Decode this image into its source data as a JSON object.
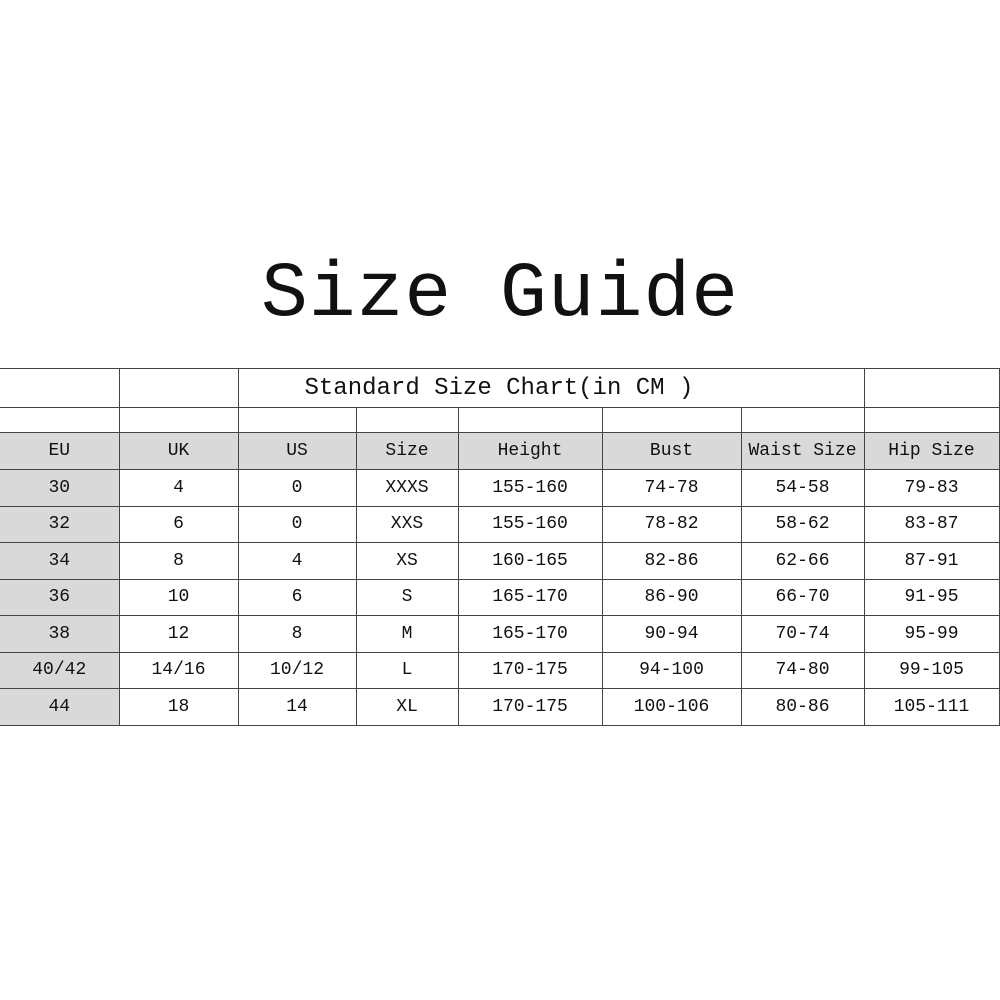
{
  "title": "Size Guide",
  "table": {
    "caption": "Standard Size Chart(in CM )",
    "headers": [
      "EU",
      "UK",
      "US",
      "Size",
      "Height",
      "Bust",
      "Waist Size",
      "Hip Size"
    ],
    "rows": [
      [
        "30",
        "4",
        "0",
        "XXXS",
        "155-160",
        "74-78",
        "54-58",
        "79-83"
      ],
      [
        "32",
        "6",
        "0",
        "XXS",
        "155-160",
        "78-82",
        "58-62",
        "83-87"
      ],
      [
        "34",
        "8",
        "4",
        "XS",
        "160-165",
        "82-86",
        "62-66",
        "87-91"
      ],
      [
        "36",
        "10",
        "6",
        "S",
        "165-170",
        "86-90",
        "66-70",
        "91-95"
      ],
      [
        "38",
        "12",
        "8",
        "M",
        "165-170",
        "90-94",
        "70-74",
        "95-99"
      ],
      [
        "40/42",
        "14/16",
        "10/12",
        "L",
        "170-175",
        "94-100",
        "74-80",
        "99-105"
      ],
      [
        "44",
        "18",
        "14",
        "XL",
        "170-175",
        "100-106",
        "80-86",
        "105-111"
      ]
    ]
  },
  "colors": {
    "header_fill": "#d9d9d9",
    "border": "#444444"
  }
}
